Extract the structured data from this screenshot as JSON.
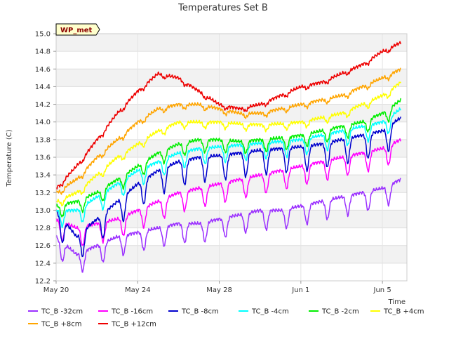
{
  "chart_data": {
    "type": "line",
    "title": "Temperatures Set B",
    "xlabel": "Time",
    "ylabel": "Temperature (C)",
    "badge": "WP_met",
    "ylim": [
      12.2,
      15.0
    ],
    "yticks": [
      "12.2",
      "12.4",
      "12.6",
      "12.8",
      "13.0",
      "13.2",
      "13.4",
      "13.6",
      "13.8",
      "14.0",
      "14.2",
      "14.4",
      "14.6",
      "14.8",
      "15.0"
    ],
    "xlim_days": [
      0,
      17.2
    ],
    "xticks": [
      {
        "label": "May 20",
        "day": 0
      },
      {
        "label": "May 24",
        "day": 4
      },
      {
        "label": "May 28",
        "day": 8
      },
      {
        "label": "Jun 1",
        "day": 12
      },
      {
        "label": "Jun 5",
        "day": 16
      }
    ],
    "grid": true,
    "legend_position": "bottom",
    "series": [
      {
        "name": "TC_B -32cm",
        "color": "#9b30ff",
        "x": [
          0,
          1,
          2,
          3,
          4,
          5,
          6,
          7,
          8,
          9,
          10,
          11,
          12,
          13,
          14,
          15,
          16,
          16.9
        ],
        "values": [
          12.7,
          12.5,
          12.6,
          12.7,
          12.75,
          12.8,
          12.85,
          12.85,
          12.9,
          12.95,
          13.0,
          13.0,
          13.05,
          13.1,
          13.15,
          13.2,
          13.25,
          13.35
        ]
      },
      {
        "name": "TC_B -16cm",
        "color": "#ff00ff",
        "x": [
          0,
          1,
          2,
          3,
          4,
          5,
          6,
          7,
          8,
          9,
          10,
          11,
          12,
          13,
          14,
          15,
          16,
          16.9
        ],
        "values": [
          12.9,
          12.8,
          12.85,
          12.9,
          13.0,
          13.1,
          13.2,
          13.25,
          13.3,
          13.35,
          13.4,
          13.45,
          13.5,
          13.55,
          13.6,
          13.65,
          13.7,
          13.8
        ]
      },
      {
        "name": "TC_B -8cm",
        "color": "#0000cd",
        "x": [
          0,
          1,
          2,
          3,
          4,
          5,
          6,
          7,
          8,
          9,
          10,
          11,
          12,
          13,
          14,
          15,
          16,
          16.9
        ],
        "values": [
          13.0,
          12.7,
          12.9,
          13.1,
          13.3,
          13.45,
          13.55,
          13.6,
          13.62,
          13.65,
          13.68,
          13.7,
          13.72,
          13.75,
          13.8,
          13.85,
          13.9,
          14.05
        ]
      },
      {
        "name": "TC_B -4cm",
        "color": "#00ffff",
        "x": [
          0,
          1,
          2,
          3,
          4,
          5,
          6,
          7,
          8,
          9,
          10,
          11,
          12,
          13,
          14,
          15,
          16,
          16.9
        ],
        "values": [
          13.0,
          13.0,
          13.15,
          13.3,
          13.45,
          13.55,
          13.65,
          13.7,
          13.72,
          13.74,
          13.76,
          13.78,
          13.8,
          13.85,
          13.9,
          13.95,
          14.0,
          14.15
        ]
      },
      {
        "name": "TC_B -2cm",
        "color": "#00ee00",
        "x": [
          0,
          1,
          2,
          3,
          4,
          5,
          6,
          7,
          8,
          9,
          10,
          11,
          12,
          13,
          14,
          15,
          16,
          16.9
        ],
        "values": [
          13.05,
          13.1,
          13.2,
          13.35,
          13.5,
          13.65,
          13.75,
          13.8,
          13.8,
          13.78,
          13.8,
          13.82,
          13.85,
          13.9,
          13.95,
          14.0,
          14.1,
          14.25
        ]
      },
      {
        "name": "TC_B +4cm",
        "color": "#ffff00",
        "x": [
          0,
          1,
          2,
          3,
          4,
          5,
          6,
          7,
          8,
          9,
          10,
          11,
          12,
          13,
          14,
          15,
          16,
          16.9
        ],
        "values": [
          13.1,
          13.2,
          13.4,
          13.6,
          13.75,
          13.9,
          14.0,
          14.0,
          14.0,
          13.98,
          13.97,
          13.98,
          14.0,
          14.05,
          14.1,
          14.2,
          14.3,
          14.45
        ]
      },
      {
        "name": "TC_B +8cm",
        "color": "#ffa500",
        "x": [
          0,
          1,
          2,
          3,
          4,
          5,
          6,
          7,
          8,
          9,
          10,
          11,
          12,
          13,
          14,
          15,
          16,
          16.9
        ],
        "values": [
          13.2,
          13.35,
          13.6,
          13.8,
          14.0,
          14.15,
          14.2,
          14.2,
          14.15,
          14.1,
          14.1,
          14.15,
          14.2,
          14.25,
          14.3,
          14.4,
          14.5,
          14.6
        ]
      },
      {
        "name": "TC_B +12cm",
        "color": "#ee0000",
        "x": [
          0,
          1,
          2,
          3,
          4,
          5,
          6,
          7,
          8,
          9,
          10,
          11,
          12,
          13,
          14,
          15,
          16,
          16.9
        ],
        "values": [
          13.25,
          13.5,
          13.8,
          14.1,
          14.35,
          14.55,
          14.5,
          14.35,
          14.2,
          14.15,
          14.2,
          14.3,
          14.4,
          14.45,
          14.55,
          14.65,
          14.8,
          14.9
        ]
      }
    ]
  }
}
